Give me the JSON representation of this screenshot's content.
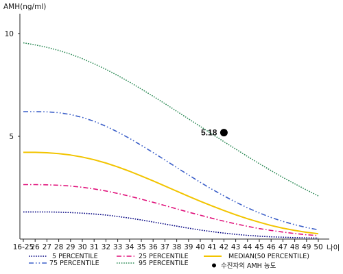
{
  "chart_data": {
    "type": "line",
    "title": "",
    "ylabel": "AMH(ng/ml)",
    "xlabel": "나이",
    "ylim": [
      0,
      11
    ],
    "yticks": [
      5,
      10
    ],
    "x_tick_labels": [
      "16-25",
      "26",
      "27",
      "28",
      "29",
      "30",
      "31",
      "32",
      "33",
      "34",
      "35",
      "36",
      "37",
      "38",
      "39",
      "40",
      "41",
      "42",
      "43",
      "44",
      "45",
      "46",
      "47",
      "48",
      "49",
      "50"
    ],
    "grid": false,
    "legend_position": "bottom",
    "series": [
      {
        "name": "5 PERCENTILE",
        "color": "#000080",
        "style": "dotted",
        "values": [
          1.32,
          1.32,
          1.32,
          1.31,
          1.29,
          1.26,
          1.22,
          1.17,
          1.1,
          1.02,
          0.93,
          0.83,
          0.73,
          0.63,
          0.53,
          0.44,
          0.36,
          0.29,
          0.23,
          0.18,
          0.14,
          0.11,
          0.09,
          0.07,
          0.06,
          0.05
        ]
      },
      {
        "name": "25 PERCENTILE",
        "color": "#e0107a",
        "style": "dashdot",
        "values": [
          2.65,
          2.65,
          2.64,
          2.62,
          2.58,
          2.52,
          2.44,
          2.34,
          2.22,
          2.09,
          1.94,
          1.79,
          1.63,
          1.47,
          1.31,
          1.16,
          1.01,
          0.87,
          0.74,
          0.62,
          0.51,
          0.42,
          0.34,
          0.27,
          0.21,
          0.17
        ]
      },
      {
        "name": "MEDIAN(50 PERCENTILE)",
        "color": "#f2c400",
        "style": "solid",
        "values": [
          4.22,
          4.22,
          4.2,
          4.16,
          4.09,
          3.99,
          3.86,
          3.7,
          3.51,
          3.3,
          3.07,
          2.83,
          2.58,
          2.33,
          2.08,
          1.84,
          1.61,
          1.39,
          1.18,
          0.99,
          0.82,
          0.66,
          0.53,
          0.42,
          0.33,
          0.26
        ]
      },
      {
        "name": "75 PERCENTILE",
        "color": "#3a5ec8",
        "style": "dashdotdot",
        "values": [
          6.2,
          6.2,
          6.19,
          6.15,
          6.06,
          5.92,
          5.73,
          5.49,
          5.21,
          4.9,
          4.56,
          4.21,
          3.85,
          3.48,
          3.12,
          2.76,
          2.42,
          2.1,
          1.8,
          1.52,
          1.27,
          1.05,
          0.86,
          0.7,
          0.56,
          0.45
        ]
      },
      {
        "name": "95 PERCENTILE",
        "color": "#2e8b57",
        "style": "dotted",
        "values": [
          9.55,
          9.45,
          9.33,
          9.18,
          9.0,
          8.78,
          8.53,
          8.26,
          7.96,
          7.64,
          7.3,
          6.95,
          6.59,
          6.22,
          5.85,
          5.48,
          5.11,
          4.74,
          4.38,
          4.02,
          3.67,
          3.33,
          3.0,
          2.69,
          2.39,
          2.1
        ]
      }
    ],
    "points": [
      {
        "name": "수진자의 AMH 농도",
        "x": "42",
        "y": 5.18,
        "label": "5.18",
        "color": "#000000"
      }
    ]
  }
}
